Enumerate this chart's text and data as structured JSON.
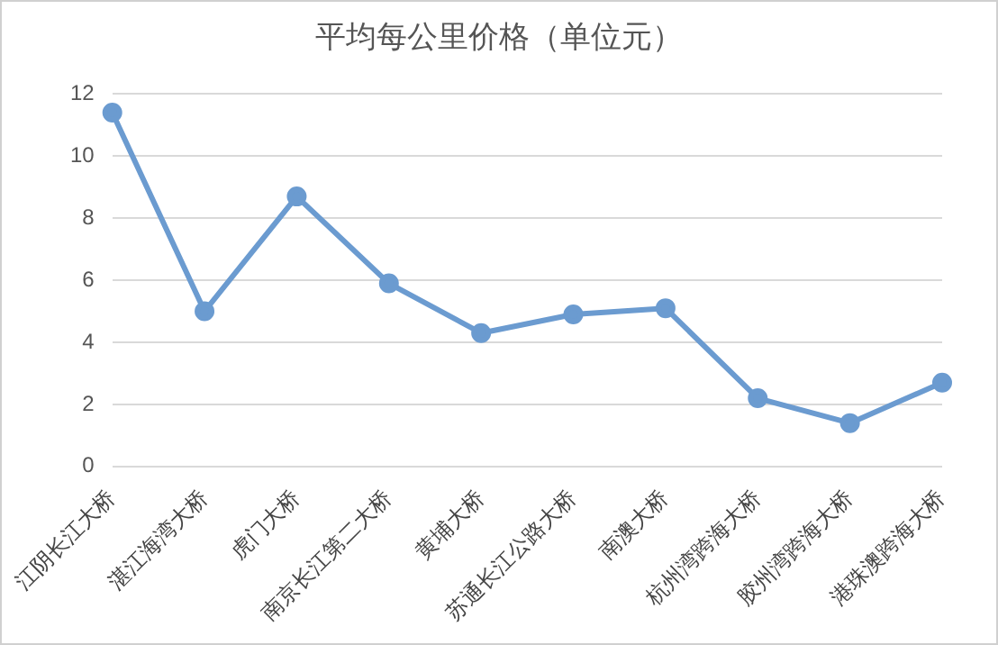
{
  "chart_data": {
    "type": "line",
    "title": "平均每公里价格（单位元）",
    "categories": [
      "江阴长江大桥",
      "湛江海湾大桥",
      "虎门大桥",
      "南京长江第二大桥",
      "黄埔大桥",
      "苏通长江公路大桥",
      "南澳大桥",
      "杭州湾跨海大桥",
      "胶州湾跨海大桥",
      "港珠澳跨海大桥"
    ],
    "series": [
      {
        "color": "#6b9bd0",
        "values": [
          11.4,
          5.0,
          8.7,
          5.9,
          4.3,
          4.9,
          5.1,
          2.2,
          1.4,
          2.7
        ]
      }
    ],
    "ylim": [
      0,
      12
    ],
    "yticks": [
      0,
      2,
      4,
      6,
      8,
      10,
      12
    ],
    "grid": "y",
    "legend": false,
    "marker": "circle",
    "line_style": "solid"
  }
}
